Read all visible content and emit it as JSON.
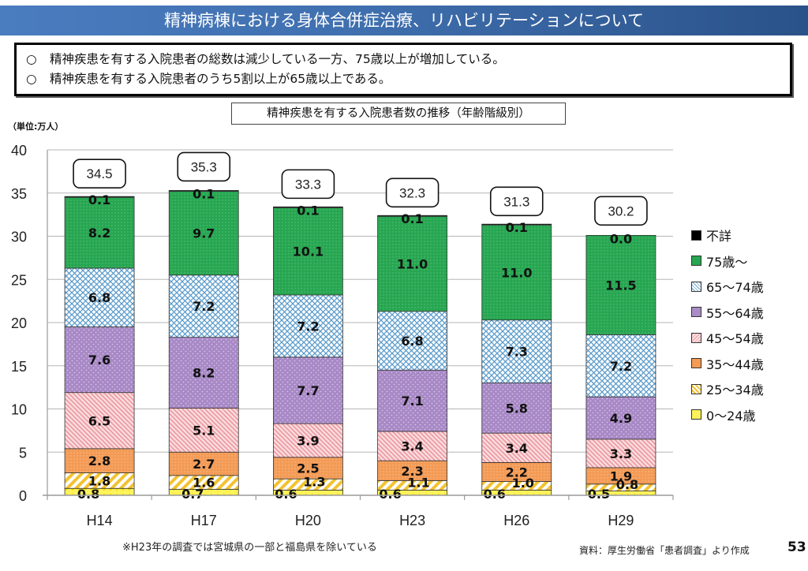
{
  "header": {
    "title": "精神病棟における身体合併症治療、リハビリテーションについて"
  },
  "summary": {
    "bullets": [
      {
        "mark": "○",
        "text": "精神疾患を有する入院患者の総数は減少している一方、75歳以上が増加している。"
      },
      {
        "mark": "○",
        "text": "精神疾患を有する入院患者のうち5割以上が65歳以上である。"
      }
    ]
  },
  "unit_label": "（単位:万人）",
  "footnote": "※H23年の調査では宮城県の一部と福島県を除いている",
  "source": "資料：厚生労働省「患者調査」より作成",
  "page_number": "53",
  "colors": {
    "header_start": "#4a7cc0",
    "header_end": "#2a5289"
  },
  "chart_data": {
    "type": "bar",
    "stacked": true,
    "title": "精神疾患を有する入院患者数の推移（年齢階級別）",
    "xlabel": "",
    "ylabel": "（単位:万人）",
    "ylim": [
      0,
      40
    ],
    "yticks": [
      0,
      5,
      10,
      15,
      20,
      25,
      30,
      35,
      40
    ],
    "grid": true,
    "legend_position": "right",
    "categories": [
      "H14",
      "H17",
      "H20",
      "H23",
      "H26",
      "H29"
    ],
    "totals": [
      34.5,
      35.3,
      33.3,
      32.3,
      31.3,
      30.2
    ],
    "series": [
      {
        "name": "0〜24歳",
        "values": [
          0.8,
          0.7,
          0.6,
          0.6,
          0.6,
          0.5
        ],
        "color": "#ffe93a",
        "pattern": "dots-yellow"
      },
      {
        "name": "25〜34歳",
        "values": [
          1.8,
          1.6,
          1.3,
          1.1,
          1.0,
          0.8
        ],
        "color": "#f2c230",
        "pattern": "stripes-yellow"
      },
      {
        "name": "35〜44歳",
        "values": [
          2.8,
          2.7,
          2.5,
          2.3,
          2.2,
          1.9
        ],
        "color": "#f39a55",
        "pattern": "dots-orange"
      },
      {
        "name": "45〜54歳",
        "values": [
          6.5,
          5.1,
          3.9,
          3.4,
          3.4,
          3.3
        ],
        "color": "#f2b3b8",
        "pattern": "stripes-pink"
      },
      {
        "name": "55〜64歳",
        "values": [
          7.6,
          8.2,
          7.7,
          7.1,
          5.8,
          4.9
        ],
        "color": "#a98cc6",
        "pattern": "dots-purple"
      },
      {
        "name": "65〜74歳",
        "values": [
          6.8,
          7.2,
          7.2,
          6.8,
          7.3,
          7.2
        ],
        "color": "#8fbde0",
        "pattern": "lattice-blue"
      },
      {
        "name": "75歳〜",
        "values": [
          8.2,
          9.7,
          10.1,
          11.0,
          11.0,
          11.5
        ],
        "color": "#27a651",
        "pattern": "dots-green"
      },
      {
        "name": "不詳",
        "values": [
          0.1,
          0.1,
          0.1,
          0.1,
          0.1,
          0.0
        ],
        "color": "#000000",
        "pattern": "solid"
      }
    ],
    "legend_order": [
      "不詳",
      "75歳〜",
      "65〜74歳",
      "55〜64歳",
      "45〜54歳",
      "35〜44歳",
      "25〜34歳",
      "0〜24歳"
    ]
  }
}
